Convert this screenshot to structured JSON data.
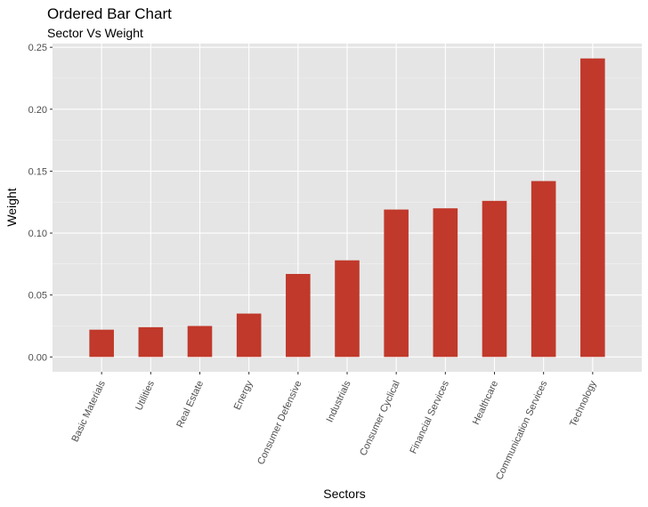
{
  "chart_data": {
    "type": "bar",
    "title": "Ordered Bar Chart",
    "subtitle": "Sector Vs Weight",
    "xlabel": "Sectors",
    "ylabel": "Weight",
    "categories": [
      "Basic Materials",
      "Utilities",
      "Real Estate",
      "Energy",
      "Consumer Defensive",
      "Industrials",
      "Consumer Cyclical",
      "Financial Services",
      "Healthcare",
      "Communication Services",
      "Technology"
    ],
    "values": [
      0.022,
      0.024,
      0.025,
      0.035,
      0.067,
      0.078,
      0.119,
      0.12,
      0.126,
      0.142,
      0.241
    ],
    "ylim": [
      -0.012,
      0.253
    ],
    "yticks": [
      0.0,
      0.05,
      0.1,
      0.15,
      0.2,
      0.25
    ],
    "ytick_labels": [
      "0.00",
      "0.05",
      "0.10",
      "0.15",
      "0.20",
      "0.25"
    ],
    "bar_color": "#c0392b",
    "panel_background": "#e5e5e5",
    "grid": true,
    "legend": "none"
  }
}
